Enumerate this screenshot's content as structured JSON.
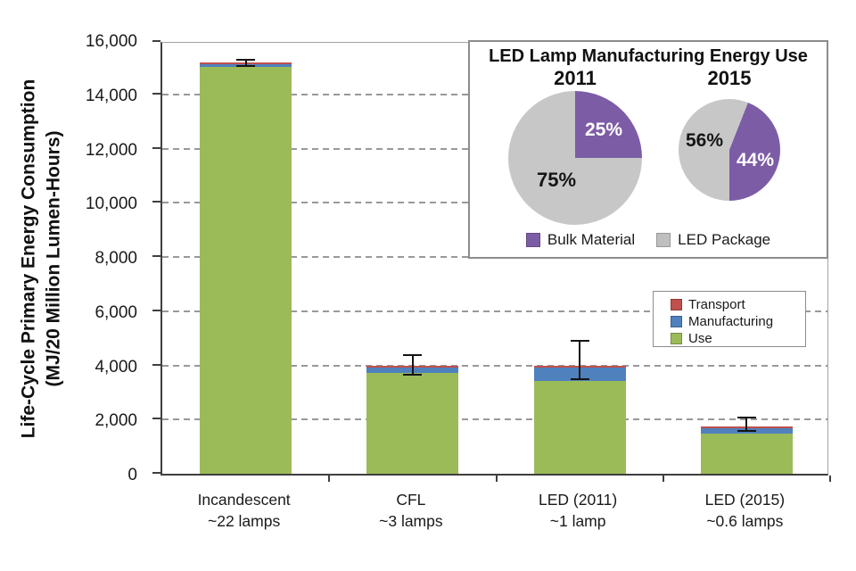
{
  "y_axis": {
    "title_line1": "Life-Cycle Primary Energy Consumption",
    "title_line2": "(MJ/20 Million Lumen-Hours)",
    "tick_values": [
      0,
      2000,
      4000,
      6000,
      8000,
      10000,
      12000,
      14000,
      16000
    ],
    "tick_labels": [
      "0",
      "2,000",
      "4,000",
      "6,000",
      "8,000",
      "10,000",
      "12,000",
      "14,000",
      "16,000"
    ]
  },
  "chart_data": {
    "type": "bar",
    "stacked": true,
    "ylabel": "Life-Cycle Primary Energy Consumption (MJ/20 Million Lumen-Hours)",
    "ylim": [
      0,
      16000
    ],
    "grid": "dashed-horizontal",
    "categories": [
      "Incandescent ~22 lamps",
      "CFL ~3 lamps",
      "LED (2011) ~1 lamp",
      "LED (2015) ~0.6 lamps"
    ],
    "category_labels": [
      {
        "line1": "Incandescent",
        "line2": "~22 lamps"
      },
      {
        "line1": "CFL",
        "line2": "~3 lamps"
      },
      {
        "line1": "LED (2011)",
        "line2": "~1 lamp"
      },
      {
        "line1": "LED (2015)",
        "line2": "~0.6 lamps"
      }
    ],
    "series": [
      {
        "name": "Use",
        "color": "#9BBB59",
        "values": [
          15000,
          3730,
          3420,
          1490
        ]
      },
      {
        "name": "Manufacturing",
        "color": "#4F81BD",
        "values": [
          100,
          180,
          490,
          200
        ]
      },
      {
        "name": "Transport",
        "color": "#C0504D",
        "values": [
          80,
          70,
          70,
          60
        ]
      }
    ],
    "totals": [
      15180,
      3980,
      3980,
      1750
    ],
    "error_bars": [
      {
        "low": 15060,
        "high": 15260
      },
      {
        "low": 3650,
        "high": 4380
      },
      {
        "low": 3490,
        "high": 4900
      },
      {
        "low": 1580,
        "high": 2070
      }
    ],
    "legend_position": "right-middle"
  },
  "legend": {
    "items": [
      {
        "label": "Transport",
        "color": "#C0504D"
      },
      {
        "label": "Manufacturing",
        "color": "#4F81BD"
      },
      {
        "label": "Use",
        "color": "#9BBB59"
      }
    ]
  },
  "inset": {
    "title": "LED Lamp Manufacturing Energy Use",
    "chart_data": [
      {
        "type": "pie",
        "title": "2011",
        "labels": [
          "Bulk Material",
          "LED Package"
        ],
        "values": [
          25,
          75
        ]
      },
      {
        "type": "pie",
        "title": "2015",
        "labels": [
          "Bulk Material",
          "LED Package"
        ],
        "values": [
          44,
          56
        ]
      }
    ],
    "pies": [
      {
        "year": "2011",
        "bulk_pct": 25,
        "package_pct": 75,
        "bulk_text": "25%",
        "package_text": "75%",
        "start_deg": 0
      },
      {
        "year": "2015",
        "bulk_pct": 44,
        "package_pct": 56,
        "bulk_text": "44%",
        "package_text": "56%",
        "start_deg": 21.6
      }
    ],
    "legend": [
      {
        "label": "Bulk Material",
        "color": "#7D5CA6"
      },
      {
        "label": "LED Package",
        "color": "#BFBFBF"
      }
    ]
  },
  "colors": {
    "use_green": "#9BBB59",
    "manufacturing_blue": "#4F81BD",
    "transport_red": "#C0504D",
    "bulk_purple": "#7D5CA6",
    "package_gray": "#C7C7C7",
    "gridline": "#999999",
    "axis": "#3F3F3F",
    "text": "#1A1A1A"
  }
}
